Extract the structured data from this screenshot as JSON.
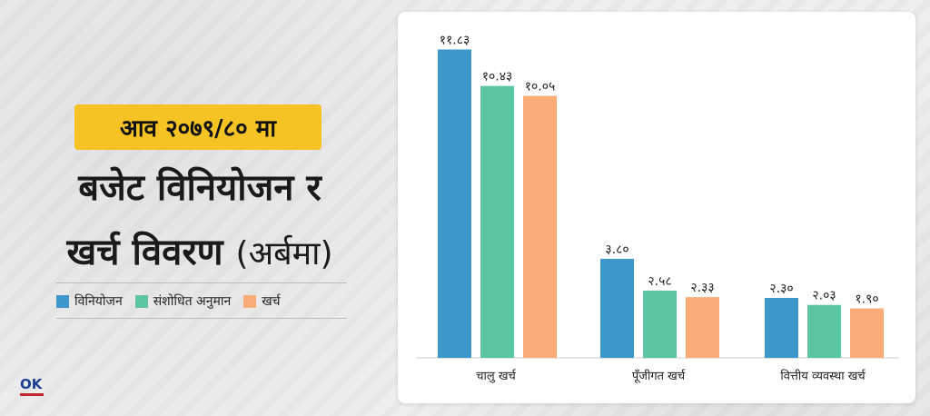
{
  "badge": "आव २०७९/८० मा",
  "title_line1": "बजेट विनियोजन र",
  "title_line2": "खर्च विवरण",
  "title_unit": "(अर्बमा)",
  "colors": {
    "allocation": "#3d97c8",
    "revised": "#5cc5a2",
    "expenditure": "#f9ab78",
    "badge": "#f6c324"
  },
  "chart_data": {
    "type": "bar",
    "categories": [
      "चालु खर्च",
      "पूँजीगत खर्च",
      "वित्तीय व्यवस्था खर्च"
    ],
    "series": [
      {
        "name": "विनियोजन",
        "values": [
          11.83,
          3.8,
          2.3
        ],
        "labels": [
          "११.८३",
          "३.८०",
          "२.३०"
        ]
      },
      {
        "name": "संशोधित अनुमान",
        "values": [
          10.43,
          2.58,
          2.03
        ],
        "labels": [
          "१०.४३",
          "२.५८",
          "२.०३"
        ]
      },
      {
        "name": "खर्च",
        "values": [
          10.05,
          2.33,
          1.9
        ],
        "labels": [
          "१०.०५",
          "२.३३",
          "१.९०"
        ]
      }
    ],
    "ylim": [
      0,
      12
    ],
    "legend_position": "left-panel"
  }
}
